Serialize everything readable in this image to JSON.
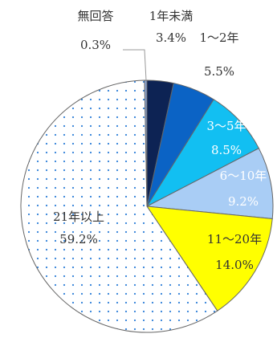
{
  "chart_data": {
    "type": "pie",
    "start": "12 o'clock",
    "direction": "clockwise",
    "slices": [
      {
        "label": "1年未満",
        "value": 3.4,
        "display": "3.4%",
        "color": "#0d2354",
        "pattern": "none",
        "label_color": "#333333"
      },
      {
        "label": "1～2年",
        "value": 5.5,
        "display": "5.5%",
        "color": "#0b63c5",
        "pattern": "none",
        "label_color": "#333333"
      },
      {
        "label": "3～5年",
        "value": 8.5,
        "display": "8.5%",
        "color": "#12bff2",
        "pattern": "none",
        "label_color": "#ffffff"
      },
      {
        "label": "6～10年",
        "value": 9.2,
        "display": "9.2%",
        "color": "#a9cdf5",
        "pattern": "none",
        "label_color": "#ffffff"
      },
      {
        "label": "11～20年",
        "value": 14.0,
        "display": "14.0%",
        "color": "#ffff00",
        "pattern": "none",
        "label_color": "#333333"
      },
      {
        "label": "21年以上",
        "value": 59.2,
        "display": "59.2%",
        "color": "#ffffff",
        "pattern": "dots",
        "label_color": "#333333"
      },
      {
        "label": "無回答",
        "value": 0.3,
        "display": "0.3%",
        "color": "#8ea9db",
        "pattern": "none",
        "label_color": "#333333"
      }
    ],
    "dot_color": "#2f7fd8",
    "border_color": "#666666"
  }
}
